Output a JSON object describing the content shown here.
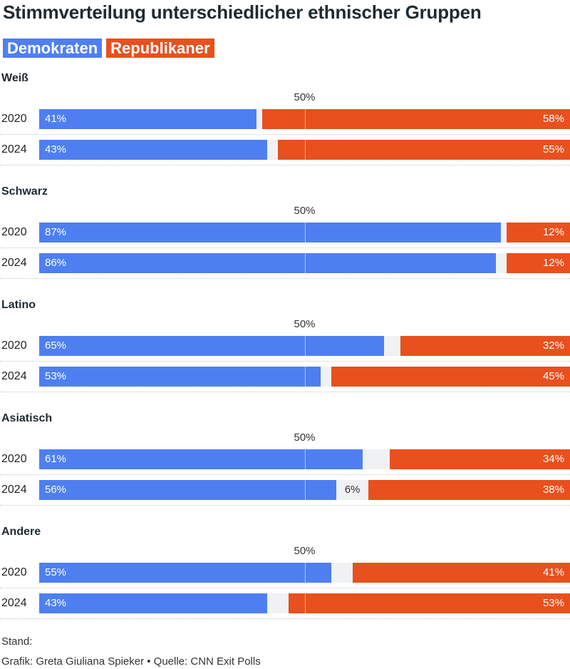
{
  "title": "Stimmverteilung unterschiedlicher ethnischer Gruppen",
  "legend": [
    {
      "label": "Demokraten",
      "color": "#4e7ff1"
    },
    {
      "label": "Republikaner",
      "color": "#e8501e"
    }
  ],
  "colors": {
    "dem": "#4e7ff1",
    "rep": "#e8501e",
    "other": "#f0f1f3"
  },
  "chart_data": {
    "type": "bar",
    "orientation": "horizontal-stacked",
    "midpoint_label": "50%",
    "xlim": [
      0,
      100
    ],
    "groups": [
      {
        "name": "Weiß",
        "rows": [
          {
            "year": "2020",
            "dem": 41,
            "rep": 58,
            "other_label": ""
          },
          {
            "year": "2024",
            "dem": 43,
            "rep": 55,
            "other_label": ""
          }
        ]
      },
      {
        "name": "Schwarz",
        "rows": [
          {
            "year": "2020",
            "dem": 87,
            "rep": 12,
            "other_label": ""
          },
          {
            "year": "2024",
            "dem": 86,
            "rep": 12,
            "other_label": ""
          }
        ]
      },
      {
        "name": "Latino",
        "rows": [
          {
            "year": "2020",
            "dem": 65,
            "rep": 32,
            "other_label": ""
          },
          {
            "year": "2024",
            "dem": 53,
            "rep": 45,
            "other_label": ""
          }
        ]
      },
      {
        "name": "Asiatisch",
        "rows": [
          {
            "year": "2020",
            "dem": 61,
            "rep": 34,
            "other_label": ""
          },
          {
            "year": "2024",
            "dem": 56,
            "rep": 38,
            "other_label": "6%"
          }
        ]
      },
      {
        "name": "Andere",
        "rows": [
          {
            "year": "2020",
            "dem": 55,
            "rep": 41,
            "other_label": ""
          },
          {
            "year": "2024",
            "dem": 43,
            "rep": 53,
            "other_label": ""
          }
        ]
      }
    ]
  },
  "footer": {
    "stand": "Stand:",
    "credit": "Grafik: Greta Giuliana Spieker • Quelle: CNN Exit Polls"
  }
}
